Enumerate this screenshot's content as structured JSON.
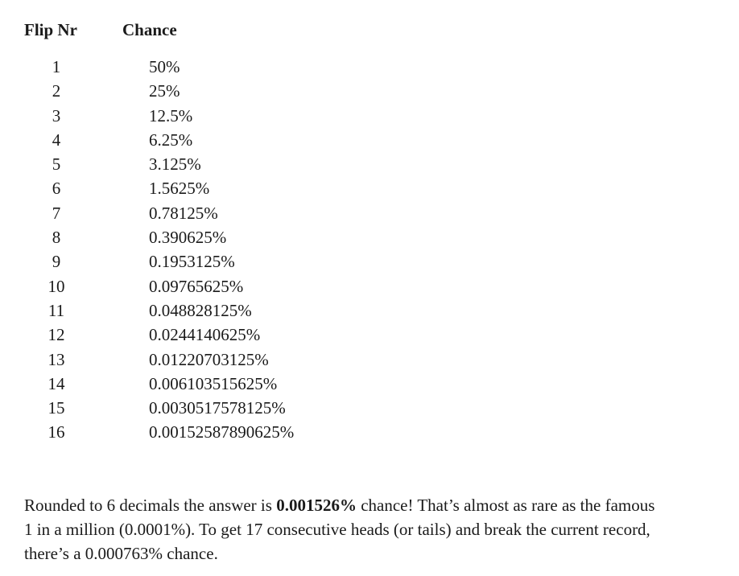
{
  "table": {
    "columns": [
      "Flip Nr",
      "Chance"
    ],
    "rows": [
      {
        "flip": "1",
        "chance": "50%"
      },
      {
        "flip": "2",
        "chance": "25%"
      },
      {
        "flip": "3",
        "chance": "12.5%"
      },
      {
        "flip": "4",
        "chance": "6.25%"
      },
      {
        "flip": "5",
        "chance": "3.125%"
      },
      {
        "flip": "6",
        "chance": "1.5625%"
      },
      {
        "flip": "7",
        "chance": "0.78125%"
      },
      {
        "flip": "8",
        "chance": "0.390625%"
      },
      {
        "flip": "9",
        "chance": "0.1953125%"
      },
      {
        "flip": "10",
        "chance": "0.09765625%"
      },
      {
        "flip": "11",
        "chance": "0.048828125%"
      },
      {
        "flip": "12",
        "chance": "0.0244140625%"
      },
      {
        "flip": "13",
        "chance": "0.01220703125%"
      },
      {
        "flip": "14",
        "chance": "0.006103515625%"
      },
      {
        "flip": "15",
        "chance": "0.0030517578125%"
      },
      {
        "flip": "16",
        "chance": "0.00152587890625%"
      }
    ]
  },
  "paragraph": {
    "line1_pre": "Rounded to 6 decimals the answer is ",
    "line1_bold": "0.001526%",
    "line1_post": " chance! That’s almost as rare as the famous",
    "line2": "1 in a million (0.0001%). To get 17 consecutive heads (or tails) and break the current record,",
    "line3": "there’s a 0.000763% chance."
  }
}
